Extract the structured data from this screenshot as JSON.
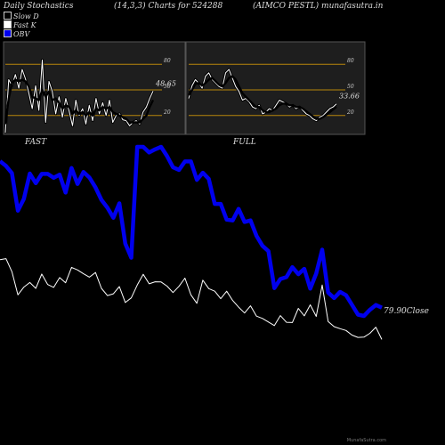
{
  "header": {
    "left": "Daily Stochastics",
    "center": "(14,3,3) Charts for 524288",
    "right": "(AIMCO PESTL) munafasutra.in"
  },
  "legend": [
    {
      "label": "Slow  D",
      "color": "#000000"
    },
    {
      "label": "Fast K",
      "color": "#ffffff"
    },
    {
      "label": "OBV",
      "color": "#0000ee"
    }
  ],
  "footer": "MunafaSutra.com",
  "chart_data": [
    {
      "type": "line",
      "title": "FAST",
      "ylim": [
        0,
        100
      ],
      "levels": [
        20,
        50,
        80
      ],
      "level_color": "#b8860b",
      "last_value_label": "48.65",
      "series": [
        {
          "name": "Fast K",
          "color": "#ffffff",
          "values": [
            0,
            62,
            55,
            68,
            52,
            74,
            63,
            46,
            28,
            55,
            26,
            85,
            12,
            60,
            48,
            22,
            42,
            18,
            40,
            25,
            8,
            38,
            20,
            28,
            10,
            32,
            14,
            40,
            22,
            35,
            20,
            38,
            12,
            20,
            22,
            15,
            14,
            8,
            12,
            14,
            10,
            24,
            30,
            40,
            48.65
          ]
        },
        {
          "name": "Slow D",
          "color": "#000000",
          "values": [
            10,
            40,
            58,
            62,
            60,
            62,
            60,
            54,
            42,
            40,
            38,
            50,
            42,
            48,
            38,
            40,
            35,
            28,
            32,
            30,
            22,
            26,
            22,
            24,
            20,
            24,
            20,
            28,
            26,
            30,
            28,
            30,
            24,
            22,
            20,
            18,
            16,
            12,
            12,
            12,
            12,
            16,
            20,
            30,
            38
          ]
        }
      ]
    },
    {
      "type": "line",
      "title": "FULL",
      "ylim": [
        0,
        100
      ],
      "levels": [
        20,
        50,
        80
      ],
      "level_color": "#b8860b",
      "last_value_label": "33.66",
      "series": [
        {
          "name": "Fast K",
          "color": "#ffffff",
          "values": [
            40,
            55,
            62,
            58,
            52,
            66,
            70,
            62,
            58,
            54,
            52,
            70,
            74,
            64,
            54,
            48,
            38,
            40,
            36,
            30,
            28,
            32,
            22,
            24,
            28,
            26,
            32,
            38,
            36,
            34,
            30,
            32,
            28,
            30,
            26,
            22,
            20,
            16,
            14,
            18,
            20,
            24,
            28,
            30,
            33.66
          ]
        },
        {
          "name": "Slow D",
          "color": "#000000",
          "values": [
            44,
            50,
            57,
            58,
            55,
            58,
            62,
            64,
            60,
            56,
            54,
            58,
            64,
            66,
            62,
            54,
            46,
            42,
            38,
            34,
            30,
            30,
            26,
            24,
            24,
            26,
            28,
            32,
            34,
            34,
            32,
            32,
            30,
            30,
            28,
            25,
            22,
            19,
            16,
            16,
            18,
            21,
            24,
            27,
            30
          ]
        }
      ]
    },
    {
      "type": "line",
      "last_value_label": "79.90",
      "last_value_suffix": "Close",
      "series": [
        {
          "name": "OBV",
          "color": "#0000ee",
          "y_domain": [
            -58,
            30
          ],
          "values": [
            22.5,
            20.1,
            16.3,
            -3.2,
            2.9,
            16.1,
            11.1,
            15.9,
            15.9,
            13.9,
            15.5,
            6.2,
            19.0,
            10.7,
            16.9,
            14.0,
            8.9,
            2.4,
            -1.7,
            -6.9,
            0.6,
            -20.4,
            -27.7,
            30.0,
            30.0,
            27.1,
            28.7,
            30.0,
            25.2,
            19.4,
            18.0,
            22.4,
            22.4,
            12.8,
            16.5,
            13.3,
            0.3,
            0.3,
            -7.9,
            -8.3,
            -2.3,
            -9.1,
            -8.3,
            -16.3,
            -21.5,
            -24.3,
            -43.5,
            -38.8,
            -37.8,
            -32.6,
            -36.3,
            -33.5,
            -43.8,
            -35.9,
            -23.5,
            -45.8,
            -48.7,
            -45.5,
            -47.2,
            -52.2,
            -57.3,
            -58.0,
            -54.8,
            -52.3,
            -53.7
          ]
        },
        {
          "name": "Close",
          "color": "#ffffff",
          "y_domain": [
            79,
            113
          ],
          "values": [
            111.0,
            111.4,
            106.3,
            97.3,
            100.3,
            102.1,
            99.8,
            105.4,
            101.3,
            100.2,
            104.0,
            102.0,
            108.0,
            107.0,
            105.5,
            104.2,
            106.0,
            99.8,
            97.0,
            97.7,
            100.5,
            94.3,
            96.1,
            101.1,
            105.3,
            101.6,
            102.4,
            102.3,
            100.7,
            98.2,
            100.6,
            103.8,
            97.3,
            94.0,
            103.0,
            99.7,
            98.7,
            95.8,
            98.7,
            95.1,
            92.5,
            90.2,
            93.0,
            89.0,
            88.1,
            86.7,
            85.3,
            89.2,
            86.6,
            86.5,
            92.0,
            89.1,
            93.4,
            88.9,
            101.1,
            86.9,
            84.9,
            84.1,
            83.4,
            81.6,
            80.7,
            80.8,
            82.3,
            84.7,
            79.9
          ]
        }
      ]
    }
  ]
}
